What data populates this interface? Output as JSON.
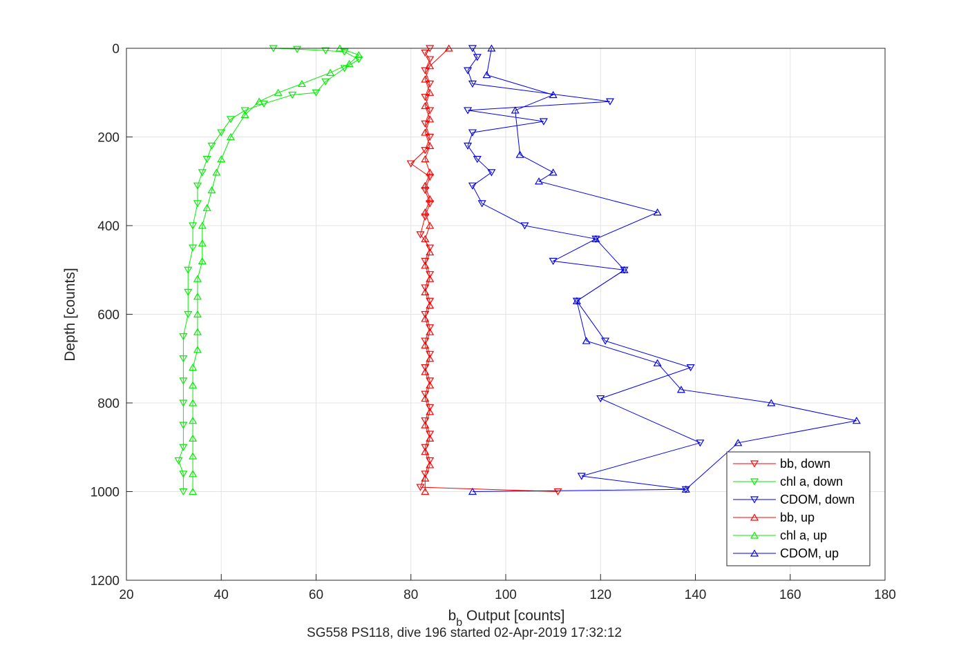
{
  "chart_data": {
    "type": "scatter",
    "xlabel_main": "b",
    "xlabel_sub": "b",
    "xlabel_rest": " Output [counts]",
    "ylabel": "Depth [counts]",
    "subtitle": "SG558 PS118, dive 196 started 02-Apr-2019 17:32:12",
    "xlim": [
      20,
      180
    ],
    "ylim": [
      0,
      1200
    ],
    "y_reversed": true,
    "xticks": [
      20,
      40,
      60,
      80,
      100,
      120,
      140,
      160,
      180
    ],
    "yticks": [
      0,
      200,
      400,
      600,
      800,
      1000,
      1200
    ],
    "grid": true,
    "legend_position": "bottom-right",
    "series": [
      {
        "name": "bb, down",
        "color": "#ff0000",
        "marker": "down",
        "points": [
          [
            84,
            0
          ],
          [
            83,
            10
          ],
          [
            84,
            25
          ],
          [
            83,
            50
          ],
          [
            84,
            80
          ],
          [
            83,
            110
          ],
          [
            84,
            140
          ],
          [
            83,
            170
          ],
          [
            84,
            200
          ],
          [
            83,
            230
          ],
          [
            80,
            260
          ],
          [
            84,
            290
          ],
          [
            83,
            320
          ],
          [
            84,
            350
          ],
          [
            83,
            380
          ],
          [
            82,
            420
          ],
          [
            84,
            450
          ],
          [
            83,
            480
          ],
          [
            84,
            510
          ],
          [
            83,
            540
          ],
          [
            84,
            570
          ],
          [
            83,
            600
          ],
          [
            84,
            630
          ],
          [
            83,
            660
          ],
          [
            84,
            690
          ],
          [
            83,
            720
          ],
          [
            84,
            750
          ],
          [
            83,
            780
          ],
          [
            84,
            810
          ],
          [
            83,
            840
          ],
          [
            84,
            870
          ],
          [
            83,
            900
          ],
          [
            84,
            930
          ],
          [
            83,
            960
          ],
          [
            82,
            990
          ],
          [
            111,
            1000
          ]
        ]
      },
      {
        "name": "chl a, down",
        "color": "#00ee00",
        "marker": "down",
        "points": [
          [
            51,
            0
          ],
          [
            56,
            2
          ],
          [
            62,
            5
          ],
          [
            66,
            8
          ],
          [
            69,
            25
          ],
          [
            66,
            45
          ],
          [
            62,
            75
          ],
          [
            60,
            100
          ],
          [
            55,
            105
          ],
          [
            49,
            125
          ],
          [
            45,
            140
          ],
          [
            42,
            160
          ],
          [
            40,
            190
          ],
          [
            38,
            220
          ],
          [
            37,
            250
          ],
          [
            36,
            280
          ],
          [
            35,
            310
          ],
          [
            35,
            350
          ],
          [
            34,
            400
          ],
          [
            34,
            450
          ],
          [
            33,
            500
          ],
          [
            33,
            550
          ],
          [
            33,
            600
          ],
          [
            32,
            650
          ],
          [
            32,
            700
          ],
          [
            32,
            750
          ],
          [
            32,
            800
          ],
          [
            32,
            850
          ],
          [
            32,
            900
          ],
          [
            31,
            930
          ],
          [
            32,
            960
          ],
          [
            32,
            1000
          ]
        ]
      },
      {
        "name": "CDOM, down",
        "color": "#0000ee",
        "marker": "down",
        "points": [
          [
            93,
            0
          ],
          [
            94,
            20
          ],
          [
            92,
            50
          ],
          [
            93,
            80
          ],
          [
            122,
            120
          ],
          [
            92,
            140
          ],
          [
            108,
            165
          ],
          [
            93,
            190
          ],
          [
            92,
            220
          ],
          [
            94,
            250
          ],
          [
            97,
            280
          ],
          [
            93,
            310
          ],
          [
            95,
            350
          ],
          [
            104,
            400
          ],
          [
            119,
            430
          ],
          [
            110,
            480
          ],
          [
            125,
            500
          ],
          [
            115,
            570
          ],
          [
            121,
            660
          ],
          [
            139,
            720
          ],
          [
            120,
            790
          ],
          [
            141,
            890
          ],
          [
            116,
            965
          ],
          [
            138,
            995
          ]
        ]
      },
      {
        "name": "bb, up",
        "color": "#ff0000",
        "marker": "up",
        "points": [
          [
            83,
            1000
          ],
          [
            83,
            970
          ],
          [
            84,
            940
          ],
          [
            83,
            910
          ],
          [
            84,
            880
          ],
          [
            83,
            850
          ],
          [
            84,
            820
          ],
          [
            83,
            790
          ],
          [
            84,
            760
          ],
          [
            83,
            730
          ],
          [
            84,
            700
          ],
          [
            83,
            670
          ],
          [
            84,
            640
          ],
          [
            83,
            610
          ],
          [
            84,
            580
          ],
          [
            83,
            550
          ],
          [
            84,
            520
          ],
          [
            83,
            490
          ],
          [
            84,
            460
          ],
          [
            83,
            430
          ],
          [
            84,
            400
          ],
          [
            83,
            370
          ],
          [
            84,
            340
          ],
          [
            83,
            310
          ],
          [
            84,
            280
          ],
          [
            83,
            250
          ],
          [
            84,
            220
          ],
          [
            83,
            190
          ],
          [
            84,
            160
          ],
          [
            83,
            130
          ],
          [
            84,
            100
          ],
          [
            83,
            70
          ],
          [
            84,
            40
          ],
          [
            88,
            0
          ]
        ]
      },
      {
        "name": "chl a, up",
        "color": "#00ee00",
        "marker": "up",
        "points": [
          [
            34,
            1000
          ],
          [
            34,
            960
          ],
          [
            34,
            920
          ],
          [
            34,
            880
          ],
          [
            34,
            840
          ],
          [
            34,
            800
          ],
          [
            34,
            760
          ],
          [
            34,
            720
          ],
          [
            35,
            680
          ],
          [
            35,
            640
          ],
          [
            35,
            600
          ],
          [
            35,
            560
          ],
          [
            35,
            520
          ],
          [
            36,
            480
          ],
          [
            36,
            440
          ],
          [
            36,
            400
          ],
          [
            37,
            360
          ],
          [
            38,
            320
          ],
          [
            39,
            280
          ],
          [
            40,
            250
          ],
          [
            42,
            200
          ],
          [
            45,
            150
          ],
          [
            48,
            120
          ],
          [
            52,
            100
          ],
          [
            57,
            80
          ],
          [
            63,
            55
          ],
          [
            67,
            35
          ],
          [
            69,
            15
          ],
          [
            65,
            0
          ]
        ]
      },
      {
        "name": "CDOM, up",
        "color": "#0000ee",
        "marker": "up",
        "points": [
          [
            93,
            1000
          ],
          [
            138,
            995
          ],
          [
            149,
            890
          ],
          [
            174,
            840
          ],
          [
            156,
            800
          ],
          [
            137,
            770
          ],
          [
            132,
            710
          ],
          [
            117,
            660
          ],
          [
            115,
            570
          ],
          [
            125,
            500
          ],
          [
            119,
            430
          ],
          [
            132,
            370
          ],
          [
            107,
            300
          ],
          [
            110,
            280
          ],
          [
            103,
            240
          ],
          [
            102,
            140
          ],
          [
            110,
            105
          ],
          [
            96,
            60
          ],
          [
            97,
            0
          ]
        ]
      }
    ]
  },
  "legend": {
    "items": [
      "bb, down",
      "chl a, down",
      "CDOM, down",
      "bb, up",
      "chl a, up",
      "CDOM, up"
    ]
  }
}
